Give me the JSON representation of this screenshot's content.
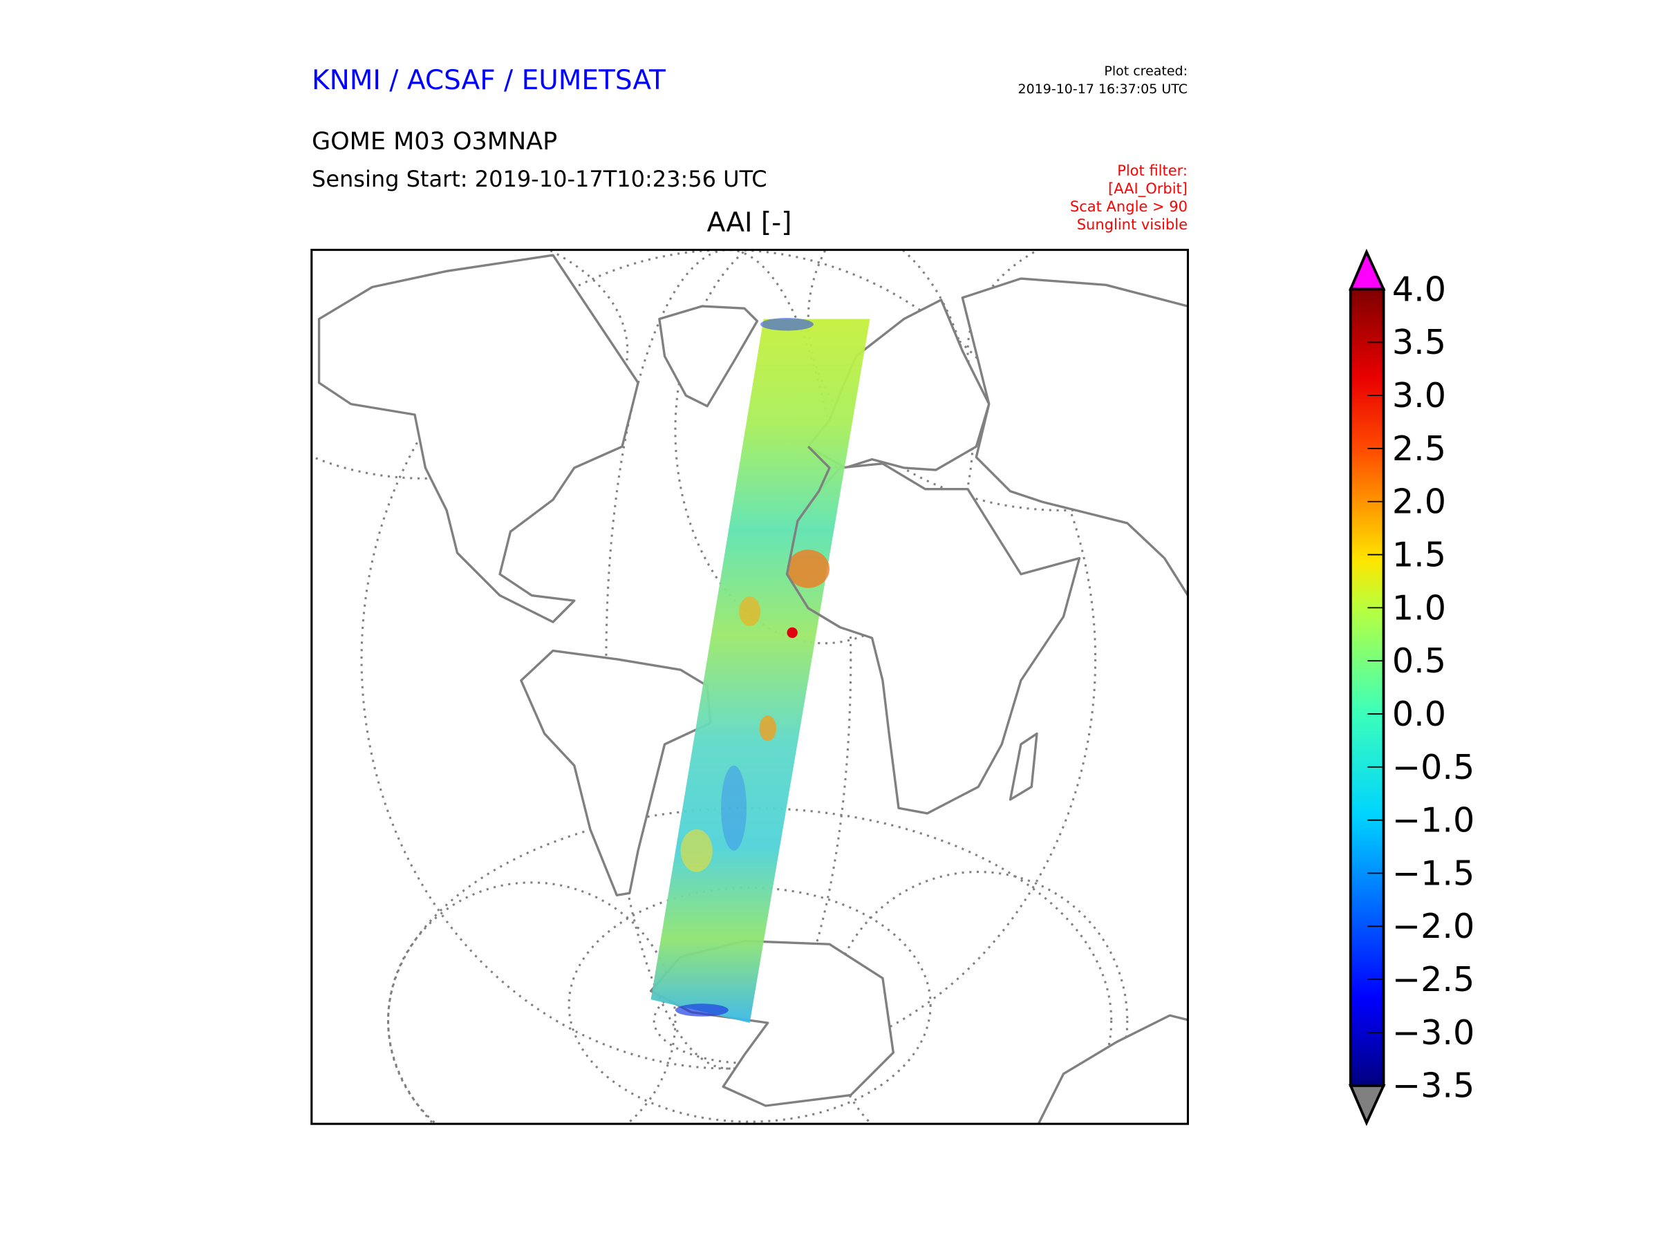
{
  "header": {
    "organization": "KNMI / ACSAF / EUMETSAT",
    "plot_created_label": "Plot created:",
    "plot_created_time": "2019-10-17 16:37:05 UTC",
    "product": "GOME M03 O3MNAP",
    "sensing_start": "Sensing Start: 2019-10-17T10:23:56 UTC",
    "filter": [
      "Plot filter:",
      "[AAI_Orbit]",
      "Scat Angle > 90",
      "Sunglint visible"
    ]
  },
  "chart_data": {
    "type": "heatmap",
    "title": "AAI [-]",
    "projection": "orthographic map (Atlantic, pole to pole)",
    "colorbar": {
      "colormap": "jet",
      "range": [
        -3.5,
        4.0
      ],
      "extend_over_color": "#ff00ff",
      "extend_under_color": "#808080",
      "ticks": [
        4.0,
        3.5,
        3.0,
        2.5,
        2.0,
        1.5,
        1.0,
        0.5,
        0.0,
        -0.5,
        -1.0,
        -1.5,
        -2.0,
        -2.5,
        -3.0,
        -3.5
      ],
      "tick_labels": [
        "4.0",
        "3.5",
        "3.0",
        "2.5",
        "2.0",
        "1.5",
        "1.0",
        "0.5",
        "0.0",
        "−0.5",
        "−1.0",
        "−1.5",
        "−2.0",
        "−2.5",
        "−3.0",
        "−3.5"
      ]
    },
    "swath_typical_range": [
      -1.0,
      1.0
    ],
    "swath_max_region": "West Africa / Sahara ~2.5-3.5"
  }
}
